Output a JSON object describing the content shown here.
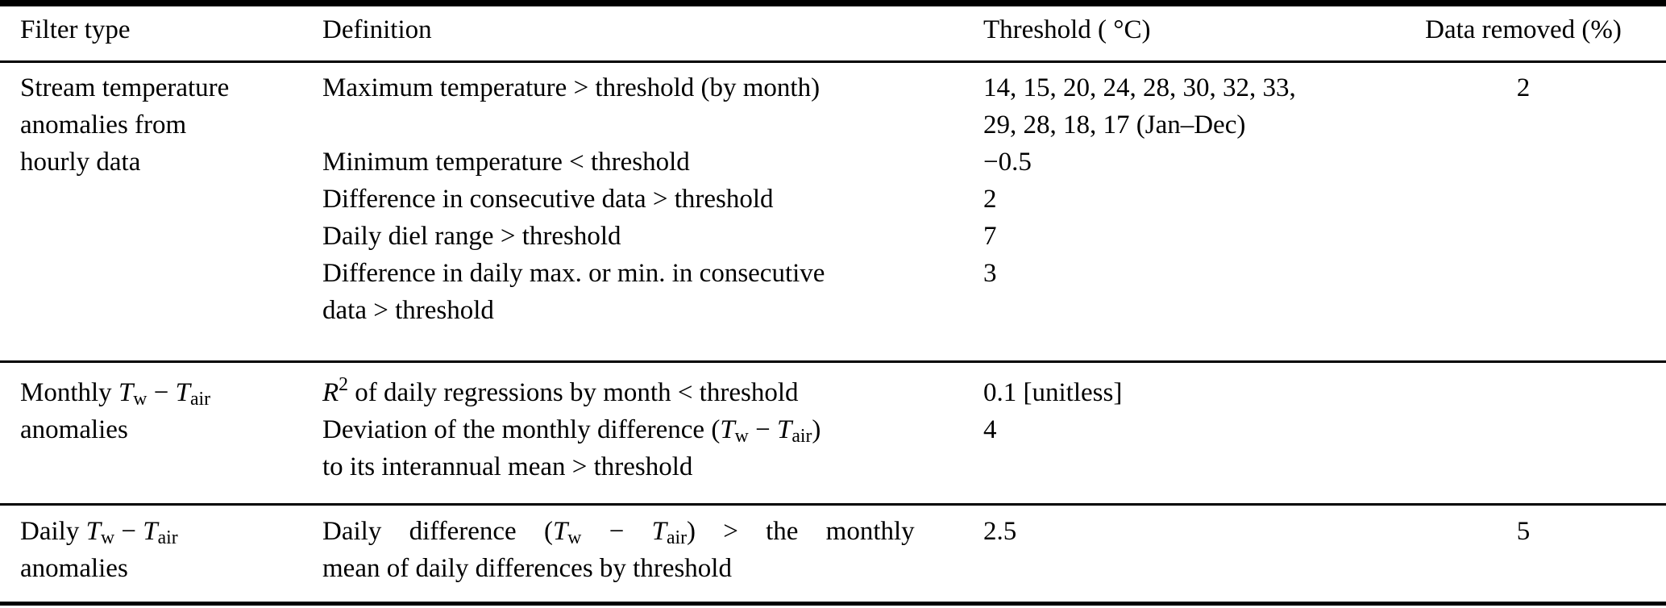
{
  "table": {
    "headers": {
      "filter_type": "Filter type",
      "definition": "Definition",
      "threshold": "Threshold ( °C)",
      "data_removed": "Data removed (%)"
    },
    "sections": [
      {
        "filter": [
          {
            "t": "Stream temperature\nanomalies from\nhourly data"
          }
        ],
        "rows": [
          {
            "def": [
              {
                "t": "Maximum temperature > threshold (by month)"
              }
            ],
            "thr": [
              {
                "t": "14, 15, 20, 24, 28, 30, 32, 33,\n29, 28, 18, 17 (Jan–Dec)"
              }
            ],
            "removed": "2"
          },
          {
            "def": [
              {
                "t": "Minimum temperature < threshold"
              }
            ],
            "thr": [
              {
                "t": "−0.5"
              }
            ]
          },
          {
            "def": [
              {
                "t": "Difference in consecutive data > threshold"
              }
            ],
            "thr": [
              {
                "t": "2"
              }
            ]
          },
          {
            "def": [
              {
                "t": "Daily diel range > threshold"
              }
            ],
            "thr": [
              {
                "t": "7"
              }
            ]
          },
          {
            "def": [
              {
                "t": "Difference in daily max. or min. in consecutive\ndata > threshold"
              }
            ],
            "thr": [
              {
                "t": "3"
              }
            ]
          }
        ]
      },
      {
        "filter": [
          {
            "t": "Monthly "
          },
          {
            "t": "T",
            "s": "i"
          },
          {
            "t": "w",
            "s": "sub"
          },
          {
            "t": " − "
          },
          {
            "t": "T",
            "s": "i"
          },
          {
            "t": "air",
            "s": "sub"
          },
          {
            "t": "\nanomalies"
          }
        ],
        "rows": [
          {
            "def": [
              {
                "t": "R",
                "s": "i"
              },
              {
                "t": "2",
                "s": "sup"
              },
              {
                "t": " of daily regressions by month < threshold"
              }
            ],
            "thr": [
              {
                "t": "0.1 [unitless]"
              }
            ]
          },
          {
            "def": [
              {
                "t": "Deviation of the monthly difference ("
              },
              {
                "t": "T",
                "s": "i"
              },
              {
                "t": "w",
                "s": "sub"
              },
              {
                "t": " − "
              },
              {
                "t": "T",
                "s": "i"
              },
              {
                "t": "air",
                "s": "sub"
              },
              {
                "t": ")\nto its interannual mean > threshold"
              }
            ],
            "thr": [
              {
                "t": "4"
              }
            ]
          }
        ]
      },
      {
        "filter": [
          {
            "t": "Daily "
          },
          {
            "t": "T",
            "s": "i"
          },
          {
            "t": "w",
            "s": "sub"
          },
          {
            "t": " − "
          },
          {
            "t": "T",
            "s": "i"
          },
          {
            "t": "air",
            "s": "sub"
          },
          {
            "t": "\nanomalies"
          }
        ],
        "rows": [
          {
            "def": [
              {
                "t": "Daily difference ("
              },
              {
                "t": "T",
                "s": "i"
              },
              {
                "t": "w",
                "s": "sub"
              },
              {
                "t": " − "
              },
              {
                "t": "T",
                "s": "i"
              },
              {
                "t": "air",
                "s": "sub"
              },
              {
                "t": ") > the monthly\nmean of daily differences by threshold"
              }
            ],
            "thr": [
              {
                "t": "2.5"
              }
            ],
            "removed": "5"
          }
        ]
      }
    ]
  }
}
